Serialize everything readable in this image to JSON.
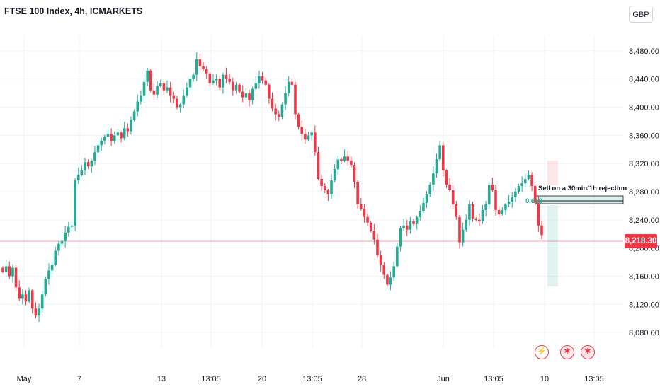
{
  "header": {
    "title": "FTSE 100 Index, 4h, ICMARKETS",
    "currency": "GBP"
  },
  "colors": {
    "up": "#22ab94",
    "down": "#f23645",
    "grid": "#f0f3fa",
    "axis_text": "#131722"
  },
  "current_price": "8,218.30",
  "annotation": {
    "text": "Sell on a 30min/1h rejection",
    "fib_label": "0.618"
  },
  "events": [
    {
      "icon": "lightning-icon",
      "glyph": "⚡"
    },
    {
      "icon": "uk-flag-icon",
      "glyph": "✱"
    },
    {
      "icon": "uk-flag-icon",
      "glyph": "✱"
    }
  ],
  "chart_data": {
    "type": "candlestick",
    "symbol": "FTSE 100 Index",
    "timeframe": "4h",
    "source": "ICMARKETS",
    "y_ticks": [
      8480,
      8440,
      8400,
      8360,
      8320,
      8280,
      8240,
      8200,
      8160,
      8120,
      8080
    ],
    "y_tick_labels": [
      "8,480.00",
      "8,440.00",
      "8,400.00",
      "8,360.00",
      "8,320.00",
      "8,280.00",
      "8,240.00",
      "8,200.00",
      "8,160.00",
      "8,120.00",
      "8,080.00"
    ],
    "ylim": [
      8058,
      8502
    ],
    "x_tick_labels": [
      "May",
      "7",
      "13",
      "13:05",
      "20",
      "13:05",
      "28",
      "Jun",
      "13:05",
      "10",
      "13:05"
    ],
    "last_price": 8218.3,
    "closes": [
      8166,
      8174,
      8160,
      8172,
      8144,
      8128,
      8134,
      8124,
      8140,
      8114,
      8104,
      8114,
      8134,
      8156,
      8168,
      8176,
      8196,
      8206,
      8210,
      8222,
      8230,
      8232,
      8296,
      8304,
      8310,
      8322,
      8316,
      8324,
      8336,
      8346,
      8352,
      8358,
      8362,
      8352,
      8360,
      8364,
      8356,
      8370,
      8366,
      8382,
      8394,
      8408,
      8416,
      8436,
      8452,
      8424,
      8418,
      8430,
      8434,
      8424,
      8428,
      8416,
      8412,
      8400,
      8404,
      8416,
      8428,
      8440,
      8446,
      8468,
      8458,
      8454,
      8448,
      8434,
      8438,
      8440,
      8428,
      8446,
      8440,
      8436,
      8424,
      8432,
      8422,
      8414,
      8420,
      8410,
      8426,
      8434,
      8444,
      8438,
      8432,
      8412,
      8398,
      8390,
      8386,
      8404,
      8420,
      8436,
      8432,
      8390,
      8372,
      8362,
      8354,
      8360,
      8364,
      8336,
      8298,
      8288,
      8282,
      8276,
      8296,
      8312,
      8326,
      8324,
      8330,
      8324,
      8318,
      8294,
      8262,
      8256,
      8244,
      8236,
      8224,
      8212,
      8190,
      8176,
      8162,
      8148,
      8158,
      8174,
      8202,
      8228,
      8232,
      8226,
      8238,
      8234,
      8244,
      8252,
      8264,
      8276,
      8290,
      8306,
      8326,
      8346,
      8310,
      8290,
      8282,
      8262,
      8244,
      8208,
      8226,
      8240,
      8262,
      8242,
      8240,
      8238,
      8254,
      8262,
      8290,
      8282,
      8254,
      8248,
      8254,
      8262,
      8266,
      8272,
      8280,
      8288,
      8292,
      8298,
      8304,
      8288,
      8264,
      8232,
      8218.3
    ]
  }
}
